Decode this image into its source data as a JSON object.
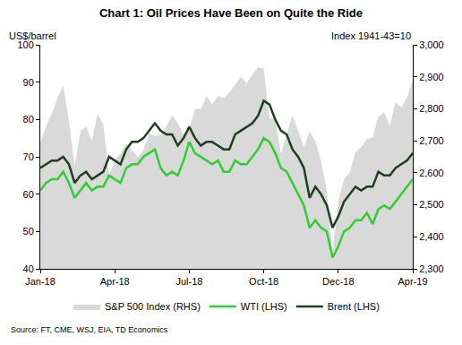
{
  "chart_data": {
    "type": "line",
    "title": "Chart 1: Oil Prices Have Been on Quite the Ride",
    "ylabel": "US$/barrel",
    "y2label": "Index 1941-43=10",
    "annotations": [
      "Source: FT, CME, WSJ, EIA, TD Economics"
    ],
    "categories": [
      "Jan-18",
      null,
      null,
      null,
      null,
      null,
      null,
      null,
      null,
      null,
      null,
      null,
      null,
      "Apr-18",
      null,
      null,
      null,
      null,
      null,
      null,
      null,
      null,
      null,
      null,
      null,
      null,
      "Jul-18",
      null,
      null,
      null,
      null,
      null,
      null,
      null,
      null,
      null,
      null,
      null,
      null,
      "Oct-18",
      null,
      null,
      null,
      null,
      null,
      null,
      null,
      null,
      null,
      null,
      null,
      null,
      "Dec-18",
      null,
      null,
      null,
      null,
      null,
      null,
      null,
      null,
      null,
      null,
      null,
      null,
      "Apr-19"
    ],
    "series": [
      {
        "name": "S&P 500 Index (RHS)",
        "type": "area",
        "axis": "y2",
        "color": "#d9d9d9",
        "values": [
          2695,
          2745,
          2785,
          2835,
          2872,
          2762,
          2620,
          2730,
          2745,
          2700,
          2785,
          2750,
          2590,
          2640,
          2660,
          2690,
          2670,
          2650,
          2670,
          2725,
          2715,
          2720,
          2745,
          2780,
          2755,
          2720,
          2735,
          2800,
          2800,
          2840,
          2815,
          2840,
          2835,
          2850,
          2875,
          2900,
          2880,
          2905,
          2930,
          2925,
          2770,
          2770,
          2660,
          2720,
          2780,
          2730,
          2680,
          2730,
          2700,
          2635,
          2545,
          2350,
          2510,
          2580,
          2600,
          2665,
          2680,
          2705,
          2710,
          2775,
          2790,
          2745,
          2820,
          2805,
          2835,
          2890
        ]
      },
      {
        "name": "WTI (LHS)",
        "type": "line",
        "color": "#33cc33",
        "values": [
          61,
          63,
          64,
          64,
          66,
          63,
          59,
          61,
          63,
          61,
          62,
          62,
          65,
          64,
          63,
          67,
          68,
          68,
          70,
          71,
          72,
          67,
          65,
          66,
          65,
          69,
          74,
          71,
          70,
          69,
          68,
          69,
          66,
          66,
          69,
          68,
          68,
          70,
          72,
          75,
          74,
          71,
          67,
          66,
          63,
          60,
          57,
          51,
          53,
          51,
          50,
          43,
          46,
          50,
          51,
          53,
          53,
          55,
          52,
          56,
          57,
          56,
          58,
          60,
          62,
          64
        ]
      },
      {
        "name": "Brent (LHS)",
        "type": "line",
        "color": "#1f3f1f",
        "values": [
          67,
          68,
          69,
          69,
          70,
          68,
          63,
          65,
          66,
          64,
          65,
          66,
          70,
          69,
          68,
          72,
          74,
          74,
          75,
          77,
          79,
          77,
          76,
          76,
          73,
          75,
          78,
          75,
          73,
          74,
          74,
          73,
          72,
          72,
          76,
          77,
          78,
          79,
          81,
          85,
          84,
          80,
          77,
          76,
          72,
          70,
          67,
          59,
          62,
          60,
          57,
          51,
          54,
          58,
          60,
          62,
          61,
          62,
          62,
          66,
          65,
          65,
          67,
          68,
          69,
          71
        ]
      }
    ],
    "ylim": [
      40,
      100
    ],
    "yticks": [
      40,
      50,
      60,
      70,
      80,
      90,
      100
    ],
    "y2lim": [
      2300,
      3000
    ],
    "y2ticks": [
      {
        "value": 2300,
        "label": "2,300"
      },
      {
        "value": 2400,
        "label": "2,400"
      },
      {
        "value": 2500,
        "label": "2,500"
      },
      {
        "value": 2600,
        "label": "2,600"
      },
      {
        "value": 2700,
        "label": "2,700"
      },
      {
        "value": 2800,
        "label": "2,800"
      },
      {
        "value": 2900,
        "label": "2,900"
      },
      {
        "value": 3000,
        "label": "3,000"
      }
    ],
    "grid": false,
    "legend": "bottom"
  }
}
